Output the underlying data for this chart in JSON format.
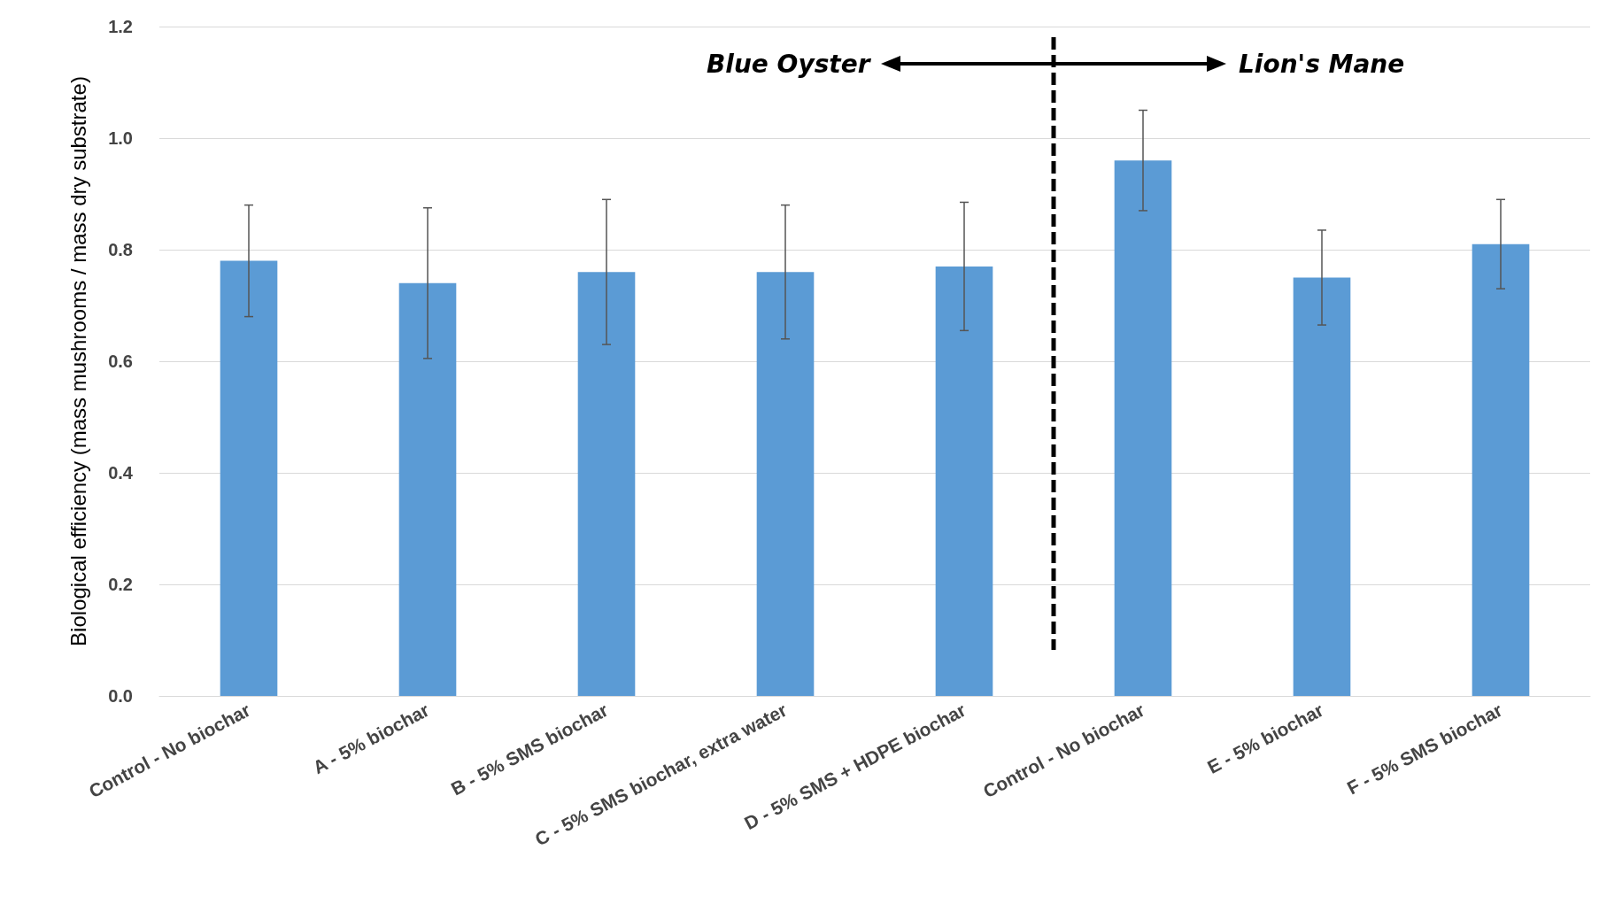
{
  "chart_data": {
    "type": "bar",
    "ylabel": "Biological efficiency (mass mushrooms / mass dry substrate)",
    "categories": [
      "Control - No biochar",
      "A - 5% biochar",
      "B - 5% SMS biochar",
      "C - 5% SMS biochar, extra water",
      "D - 5% SMS + HDPE biochar",
      "Control - No biochar",
      "E - 5% biochar",
      "F - 5% SMS biochar"
    ],
    "values": [
      0.78,
      0.74,
      0.76,
      0.76,
      0.77,
      0.96,
      0.75,
      0.81
    ],
    "errors": [
      0.1,
      0.135,
      0.13,
      0.12,
      0.115,
      0.09,
      0.085,
      0.08
    ],
    "color": "#5b9bd5",
    "ylim": [
      0,
      1.2
    ],
    "yticks": [
      {
        "value": 0,
        "label": "0.0"
      },
      {
        "value": 0.2,
        "label": "0.2"
      },
      {
        "value": 0.4,
        "label": "0.4"
      },
      {
        "value": 0.6,
        "label": "0.6"
      },
      {
        "value": 0.8,
        "label": "0.8"
      },
      {
        "value": 1,
        "label": "1.0"
      },
      {
        "value": 1.2,
        "label": "1.2"
      }
    ],
    "grid": "y",
    "annotations": [
      "Blue Oyster",
      "Lion's Mane"
    ]
  }
}
